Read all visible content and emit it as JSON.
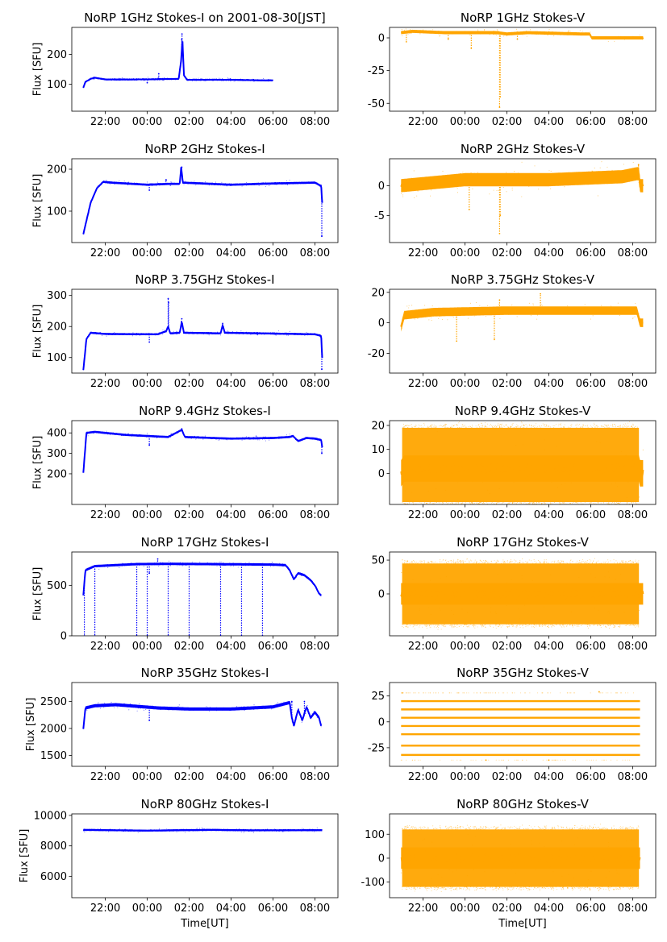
{
  "figure": {
    "xlabel": "Time[UT]",
    "x_tick_labels": [
      "22:00",
      "00:00",
      "02:00",
      "04:00",
      "06:00",
      "08:00"
    ],
    "colors": {
      "stokes_i": "#0000ff",
      "stokes_v": "#ffa500"
    }
  },
  "chart_data": [
    {
      "id": "p1i",
      "type": "scatter",
      "title": "NoRP 1GHz Stokes-I on 2001-08-30[JST]",
      "ylabel": "Flux [SFU]",
      "xlabel": "",
      "ylim": [
        10,
        290
      ],
      "yticks": [
        100,
        200
      ],
      "color": "#0000ff",
      "profile": [
        [
          20.95,
          88
        ],
        [
          21.05,
          108
        ],
        [
          21.3,
          118
        ],
        [
          21.5,
          122
        ],
        [
          22.0,
          116
        ],
        [
          23.5,
          116
        ],
        [
          24.5,
          117
        ],
        [
          25.5,
          118
        ],
        [
          25.62,
          180
        ],
        [
          25.68,
          250
        ],
        [
          25.75,
          130
        ],
        [
          25.9,
          115
        ],
        [
          28.0,
          115
        ],
        [
          29.5,
          113
        ],
        [
          30.0,
          113
        ]
      ],
      "noise": 2.5,
      "x_end": 30.0,
      "spikes": [
        [
          25.65,
          250
        ],
        [
          25.66,
          268
        ],
        [
          25.7,
          200
        ],
        [
          24.55,
          135
        ],
        [
          24.0,
          105
        ]
      ]
    },
    {
      "id": "p1v",
      "type": "scatter",
      "title": "NoRP 1GHz Stokes-V",
      "ylabel": "",
      "xlabel": "",
      "ylim": [
        -56,
        8
      ],
      "yticks": [
        -50,
        -25,
        0
      ],
      "color": "#ffa500",
      "profile": [
        [
          20.95,
          4
        ],
        [
          21.5,
          5
        ],
        [
          23.0,
          4
        ],
        [
          25.5,
          4
        ],
        [
          26.0,
          3
        ],
        [
          27.0,
          4
        ],
        [
          29.5,
          3
        ],
        [
          29.95,
          3
        ],
        [
          30.05,
          0
        ],
        [
          32.5,
          0
        ]
      ],
      "noise": 1.2,
      "x_end": 32.5,
      "spikes": [
        [
          25.65,
          -53
        ],
        [
          25.68,
          -45
        ],
        [
          21.2,
          -3
        ],
        [
          24.3,
          -8
        ],
        [
          23.2,
          -1
        ],
        [
          26.5,
          -1
        ]
      ]
    },
    {
      "id": "p2i",
      "type": "scatter",
      "title": "NoRP 2GHz Stokes-I",
      "ylabel": "Flux [SFU]",
      "xlabel": "",
      "ylim": [
        25,
        225
      ],
      "yticks": [
        100,
        200
      ],
      "color": "#0000ff",
      "profile": [
        [
          20.95,
          45
        ],
        [
          21.3,
          120
        ],
        [
          21.6,
          155
        ],
        [
          21.9,
          170
        ],
        [
          22.3,
          168
        ],
        [
          24.0,
          163
        ],
        [
          25.0,
          165
        ],
        [
          25.55,
          165
        ],
        [
          25.62,
          205
        ],
        [
          25.7,
          168
        ],
        [
          28.0,
          163
        ],
        [
          30.0,
          166
        ],
        [
          32.0,
          168
        ],
        [
          32.3,
          160
        ],
        [
          32.35,
          120
        ]
      ],
      "noise": 2.5,
      "x_end": 32.35,
      "spikes": [
        [
          25.65,
          205
        ],
        [
          24.9,
          175
        ],
        [
          24.1,
          150
        ],
        [
          32.33,
          40
        ]
      ]
    },
    {
      "id": "p2v",
      "type": "scatter",
      "title": "NoRP 2GHz Stokes-V",
      "ylabel": "",
      "xlabel": "",
      "ylim": [
        -9.5,
        4.5
      ],
      "yticks": [
        -5,
        0
      ],
      "color": "#ffa500",
      "profile": [
        [
          20.95,
          0
        ],
        [
          24.0,
          1
        ],
        [
          28.0,
          1
        ],
        [
          31.5,
          1.5
        ],
        [
          32.2,
          2
        ],
        [
          32.3,
          2
        ],
        [
          32.35,
          0
        ],
        [
          32.5,
          0
        ]
      ],
      "noise": 1.1,
      "x_end": 32.5,
      "spikes": [
        [
          25.65,
          -8
        ],
        [
          25.68,
          -5
        ],
        [
          32.28,
          3.5
        ],
        [
          24.2,
          -4
        ]
      ]
    },
    {
      "id": "p3i",
      "type": "scatter",
      "title": "NoRP 3.75GHz Stokes-I",
      "ylabel": "Flux [SFU]",
      "xlabel": "",
      "ylim": [
        50,
        320
      ],
      "yticks": [
        100,
        200,
        300
      ],
      "color": "#0000ff",
      "profile": [
        [
          20.95,
          60
        ],
        [
          21.1,
          160
        ],
        [
          21.3,
          180
        ],
        [
          22.0,
          176
        ],
        [
          24.5,
          175
        ],
        [
          24.9,
          185
        ],
        [
          25.0,
          200
        ],
        [
          25.1,
          178
        ],
        [
          25.55,
          180
        ],
        [
          25.65,
          215
        ],
        [
          25.75,
          180
        ],
        [
          27.5,
          178
        ],
        [
          27.6,
          205
        ],
        [
          27.7,
          180
        ],
        [
          32.0,
          175
        ],
        [
          32.3,
          170
        ],
        [
          32.35,
          100
        ]
      ],
      "noise": 3.0,
      "x_end": 32.35,
      "spikes": [
        [
          25.0,
          290
        ],
        [
          25.02,
          278
        ],
        [
          25.65,
          225
        ],
        [
          27.6,
          210
        ],
        [
          32.33,
          62
        ],
        [
          24.1,
          150
        ]
      ]
    },
    {
      "id": "p3v",
      "type": "scatter",
      "title": "NoRP 3.75GHz Stokes-V",
      "ylabel": "",
      "xlabel": "",
      "ylim": [
        -33,
        22
      ],
      "yticks": [
        -20,
        0,
        20
      ],
      "color": "#ffa500",
      "profile": [
        [
          20.95,
          -3
        ],
        [
          21.1,
          5
        ],
        [
          22.5,
          7
        ],
        [
          26.0,
          8
        ],
        [
          30.0,
          8
        ],
        [
          32.2,
          8
        ],
        [
          32.35,
          0
        ],
        [
          32.5,
          0
        ]
      ],
      "noise": 2.8,
      "x_end": 32.5,
      "spikes": [
        [
          27.6,
          19
        ],
        [
          25.65,
          15
        ],
        [
          25.4,
          -11
        ],
        [
          23.6,
          -12
        ]
      ]
    },
    {
      "id": "p4i",
      "type": "scatter",
      "title": "NoRP 9.4GHz Stokes-I",
      "ylabel": "Flux [SFU]",
      "xlabel": "",
      "ylim": [
        50,
        460
      ],
      "yticks": [
        200,
        300,
        400
      ],
      "color": "#0000ff",
      "profile": [
        [
          20.95,
          205
        ],
        [
          21.1,
          400
        ],
        [
          21.5,
          405
        ],
        [
          23.0,
          390
        ],
        [
          25.0,
          380
        ],
        [
          25.65,
          415
        ],
        [
          25.8,
          380
        ],
        [
          28.0,
          372
        ],
        [
          30.0,
          375
        ],
        [
          30.8,
          380
        ],
        [
          30.95,
          385
        ],
        [
          31.2,
          360
        ],
        [
          31.6,
          375
        ],
        [
          32.0,
          372
        ],
        [
          32.3,
          365
        ],
        [
          32.35,
          330
        ]
      ],
      "noise": 5,
      "x_end": 32.35,
      "spikes": [
        [
          25.65,
          420
        ],
        [
          24.1,
          340
        ],
        [
          32.33,
          300
        ]
      ]
    },
    {
      "id": "p4v",
      "type": "scatter",
      "title": "NoRP 9.4GHz Stokes-V",
      "ylabel": "",
      "xlabel": "",
      "ylim": [
        -13,
        22
      ],
      "yticks": [
        0,
        10,
        20
      ],
      "color": "#ffa500",
      "profile": [
        [
          20.95,
          0
        ],
        [
          21.1,
          2
        ],
        [
          32.3,
          2
        ],
        [
          32.35,
          0
        ],
        [
          32.5,
          0
        ]
      ],
      "noise": 5.5,
      "x_end": 32.5,
      "band": [
        [
          21.0,
          -12,
          19
        ],
        [
          32.3,
          -12,
          19
        ]
      ],
      "spikes": []
    },
    {
      "id": "p5i",
      "type": "scatter",
      "title": "NoRP 17GHz Stokes-I",
      "ylabel": "Flux [SFU]",
      "xlabel": "",
      "ylim": [
        0,
        830
      ],
      "yticks": [
        0,
        500
      ],
      "color": "#0000ff",
      "profile": [
        [
          20.95,
          400
        ],
        [
          21.05,
          650
        ],
        [
          21.5,
          690
        ],
        [
          23.5,
          710
        ],
        [
          25.0,
          712
        ],
        [
          27.0,
          710
        ],
        [
          30.0,
          705
        ],
        [
          30.6,
          700
        ],
        [
          30.8,
          650
        ],
        [
          31.0,
          560
        ],
        [
          31.2,
          620
        ],
        [
          31.5,
          600
        ],
        [
          31.8,
          550
        ],
        [
          32.0,
          500
        ],
        [
          32.2,
          420
        ],
        [
          32.3,
          400
        ]
      ],
      "noise": 12,
      "x_end": 32.3,
      "spikes": [
        [
          24.1,
          620
        ],
        [
          24.5,
          760
        ],
        [
          24.0,
          0
        ],
        [
          21.0,
          0
        ],
        [
          21.5,
          0
        ],
        [
          23.5,
          0
        ],
        [
          25.0,
          0
        ],
        [
          26.0,
          0
        ],
        [
          27.5,
          0
        ],
        [
          28.5,
          0
        ],
        [
          29.5,
          0
        ]
      ]
    },
    {
      "id": "p5v",
      "type": "scatter",
      "title": "NoRP 17GHz Stokes-V",
      "ylabel": "",
      "xlabel": "",
      "ylim": [
        -62,
        62
      ],
      "yticks": [
        0,
        50
      ],
      "color": "#ffa500",
      "profile": [
        [
          20.95,
          0
        ],
        [
          21.1,
          0
        ],
        [
          32.3,
          0
        ],
        [
          32.35,
          0
        ],
        [
          32.5,
          0
        ]
      ],
      "noise": 16,
      "x_end": 32.5,
      "band": [
        [
          21.0,
          -45,
          45
        ],
        [
          32.3,
          -45,
          45
        ]
      ],
      "spikes": []
    },
    {
      "id": "p6i",
      "type": "scatter",
      "title": "NoRP 35GHz Stokes-I",
      "ylabel": "Flux [SFU]",
      "xlabel": "",
      "ylim": [
        1300,
        2850
      ],
      "yticks": [
        1500,
        2000,
        2500
      ],
      "color": "#0000ff",
      "profile": [
        [
          20.95,
          2000
        ],
        [
          21.05,
          2380
        ],
        [
          21.5,
          2420
        ],
        [
          22.5,
          2440
        ],
        [
          24.5,
          2380
        ],
        [
          26.0,
          2360
        ],
        [
          28.0,
          2360
        ],
        [
          30.0,
          2400
        ],
        [
          30.8,
          2480
        ],
        [
          30.9,
          2200
        ],
        [
          31.0,
          2050
        ],
        [
          31.2,
          2350
        ],
        [
          31.4,
          2150
        ],
        [
          31.6,
          2400
        ],
        [
          31.8,
          2200
        ],
        [
          32.0,
          2300
        ],
        [
          32.2,
          2200
        ],
        [
          32.3,
          2050
        ]
      ],
      "noise": 30,
      "x_end": 32.3,
      "spikes": [
        [
          24.1,
          2150
        ],
        [
          30.9,
          2500
        ],
        [
          31.5,
          2500
        ]
      ]
    },
    {
      "id": "p6v",
      "type": "levels",
      "title": "NoRP 35GHz Stokes-V",
      "ylabel": "",
      "xlabel": "",
      "ylim": [
        -43,
        38
      ],
      "yticks": [
        -25,
        0,
        25
      ],
      "color": "#ffa500",
      "levels": [
        20,
        12,
        4,
        -4,
        -12,
        -23,
        -32
      ],
      "x_range": [
        20.95,
        32.35
      ],
      "dashed_level": 0,
      "spikes": [
        [
          21.0,
          28
        ],
        [
          30.4,
          29
        ],
        [
          25.0,
          -37
        ],
        [
          28.0,
          -37
        ]
      ]
    },
    {
      "id": "p7i",
      "type": "scatter",
      "title": "NoRP 80GHz Stokes-I",
      "ylabel": "Flux [SFU]",
      "xlabel": "Time[UT]",
      "ylim": [
        4600,
        10100
      ],
      "yticks": [
        6000,
        8000,
        10000
      ],
      "color": "#0000ff",
      "profile": [
        [
          20.95,
          9050
        ],
        [
          24.0,
          9000
        ],
        [
          27.0,
          9050
        ],
        [
          29.0,
          9020
        ],
        [
          32.35,
          9030
        ]
      ],
      "noise": 60,
      "x_end": 32.35,
      "spikes": []
    },
    {
      "id": "p7v",
      "type": "scatter",
      "title": "NoRP 80GHz Stokes-V",
      "ylabel": "",
      "xlabel": "Time[UT]",
      "ylim": [
        -165,
        185
      ],
      "yticks": [
        -100,
        0,
        100
      ],
      "color": "#ffa500",
      "profile": [
        [
          20.95,
          0
        ],
        [
          32.35,
          0
        ]
      ],
      "noise": 45,
      "x_end": 32.35,
      "band": [
        [
          21.0,
          -120,
          120
        ],
        [
          32.3,
          -120,
          120
        ]
      ],
      "spikes": []
    }
  ]
}
